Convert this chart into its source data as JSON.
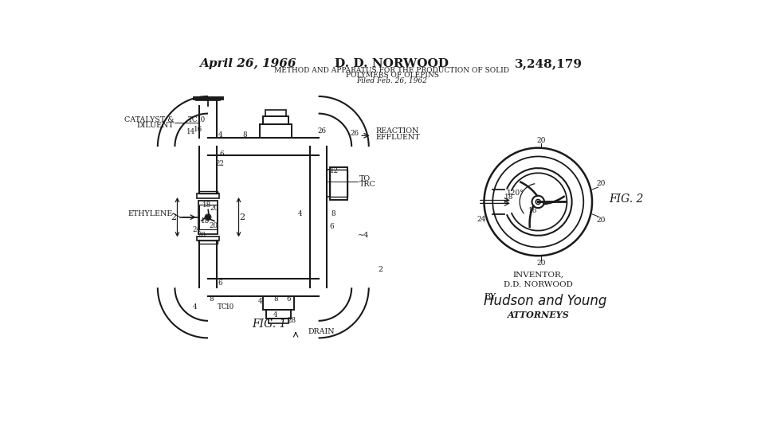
{
  "bg_color": "#ffffff",
  "line_color": "#1a1a1a",
  "title_date": "April 26, 1966",
  "title_name": "D. D. NORWOOD",
  "title_patent": "3,248,179",
  "title_line1": "METHOD AND APPARATUS FOR THE PRODUCTION OF SOLID",
  "title_line2": "POLYMERS OF OLEPINS",
  "title_line3": "Filed Feb. 26, 1962",
  "fig1_label": "FIG. 1",
  "fig2_label": "FIG. 2",
  "inventor_text": "INVENTOR,\nD.D. NORWOOD",
  "by_text": "BY",
  "attorneys_text": "ATTORNEYS",
  "signature_text": "Hudson and Young"
}
